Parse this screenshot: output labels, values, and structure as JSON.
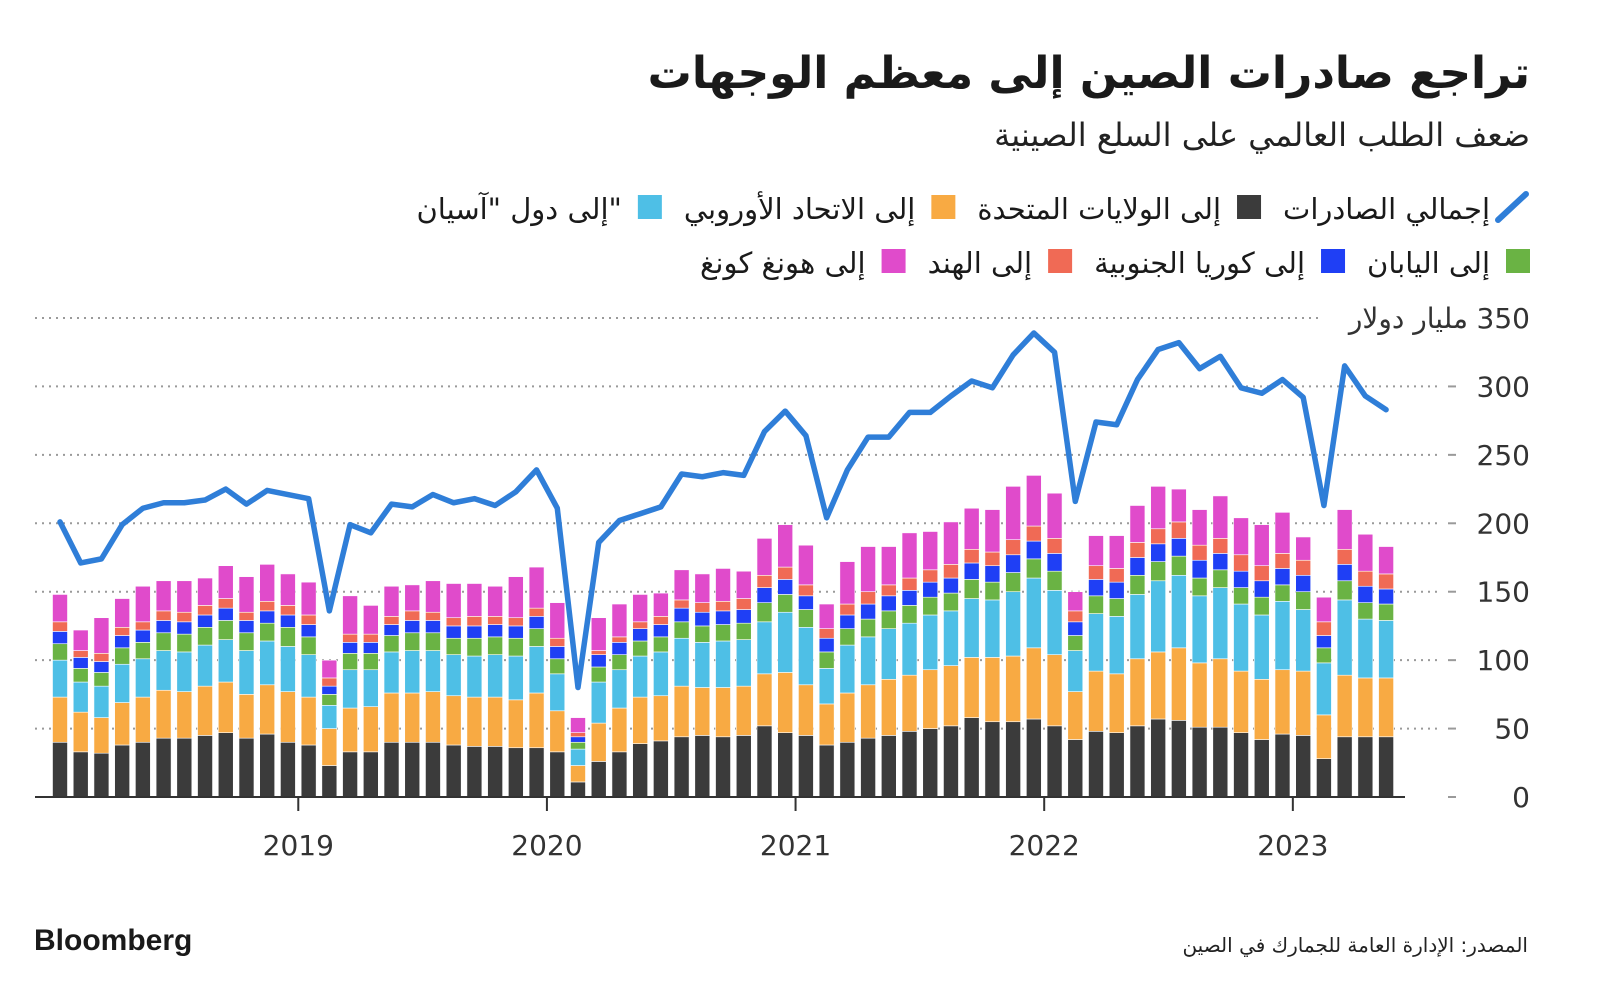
{
  "chart_data": {
    "type": "bar",
    "stacked": true,
    "title": "تراجع صادرات الصين إلى معظم الوجهات",
    "subtitle": "ضعف الطلب العالمي على السلع الصينية",
    "ylabel": "مليار دولار",
    "source": "المصدر: الإدارة العامة للجمارك في الصين",
    "brand": "Bloomberg",
    "categories": [
      null,
      null,
      null,
      null,
      null,
      null,
      null,
      null,
      null,
      null,
      null,
      "2019",
      null,
      null,
      null,
      null,
      null,
      null,
      null,
      null,
      null,
      null,
      null,
      "2020",
      null,
      null,
      null,
      null,
      null,
      null,
      null,
      null,
      null,
      null,
      null,
      "2021",
      null,
      null,
      null,
      null,
      null,
      null,
      null,
      null,
      null,
      null,
      null,
      "2022",
      null,
      null,
      null,
      null,
      null,
      null,
      null,
      null,
      null,
      null,
      null,
      "2023",
      null,
      null,
      null,
      null,
      null
    ],
    "ylim": [
      0,
      350
    ],
    "yticks": [
      0,
      50,
      100,
      150,
      200,
      250,
      300,
      350
    ],
    "grid": true,
    "series": [
      {
        "name": "إجمالي الصادرات",
        "type": "line",
        "color": "#2f7ed8",
        "values": [
          201,
          171,
          174,
          199,
          211,
          215,
          215,
          217,
          225,
          214,
          224,
          221,
          218,
          136,
          199,
          193,
          214,
          212,
          221,
          215,
          218,
          213,
          223,
          239,
          211,
          80,
          186,
          202,
          207,
          212,
          236,
          234,
          237,
          235,
          267,
          282,
          264,
          204,
          239,
          263,
          263,
          281,
          281,
          293,
          304,
          299,
          323,
          339,
          325,
          216,
          274,
          272,
          305,
          327,
          332,
          313,
          322,
          299,
          295,
          305,
          292,
          213,
          315,
          293,
          283
        ]
      },
      {
        "name": "إلى الولايات المتحدة",
        "color": "#3b3b3b",
        "values": [
          40,
          33,
          32,
          38,
          40,
          43,
          43,
          45,
          47,
          43,
          46,
          40,
          38,
          23,
          33,
          33,
          40,
          40,
          40,
          38,
          37,
          37,
          36,
          36,
          33,
          11,
          26,
          33,
          39,
          41,
          44,
          45,
          44,
          45,
          52,
          47,
          45,
          38,
          40,
          43,
          45,
          48,
          50,
          52,
          58,
          55,
          55,
          57,
          52,
          42,
          48,
          47,
          52,
          57,
          56,
          51,
          51,
          47,
          42,
          46,
          45,
          28,
          44,
          44,
          44
        ]
      },
      {
        "name": "إلى الاتحاد الأوروبي",
        "color": "#f8aa43",
        "values": [
          33,
          29,
          26,
          31,
          33,
          35,
          34,
          36,
          37,
          32,
          36,
          37,
          35,
          27,
          32,
          33,
          36,
          36,
          37,
          36,
          36,
          36,
          35,
          40,
          30,
          12,
          28,
          32,
          34,
          33,
          37,
          35,
          36,
          36,
          38,
          44,
          37,
          30,
          36,
          39,
          41,
          41,
          43,
          44,
          44,
          47,
          48,
          52,
          52,
          35,
          44,
          43,
          49,
          49,
          53,
          47,
          50,
          45,
          44,
          47,
          47,
          32,
          45,
          43,
          43
        ]
      },
      {
        "name": "إلى دول \"آسيان\"",
        "color": "#4ebfe6",
        "values": [
          27,
          22,
          23,
          28,
          28,
          29,
          29,
          30,
          31,
          32,
          32,
          33,
          31,
          17,
          28,
          27,
          30,
          31,
          30,
          30,
          30,
          31,
          32,
          34,
          27,
          12,
          30,
          28,
          30,
          32,
          35,
          33,
          34,
          34,
          38,
          44,
          42,
          26,
          35,
          35,
          37,
          38,
          40,
          40,
          43,
          42,
          47,
          51,
          47,
          30,
          42,
          42,
          47,
          52,
          53,
          49,
          52,
          49,
          47,
          50,
          45,
          38,
          55,
          43,
          42
        ]
      },
      {
        "name": "إلى اليابان",
        "color": "#6ab344",
        "values": [
          12,
          10,
          10,
          12,
          12,
          13,
          13,
          13,
          14,
          13,
          13,
          14,
          13,
          8,
          12,
          12,
          12,
          13,
          13,
          12,
          13,
          13,
          13,
          13,
          11,
          5,
          11,
          11,
          11,
          11,
          12,
          12,
          12,
          12,
          14,
          13,
          13,
          12,
          12,
          13,
          13,
          13,
          13,
          13,
          14,
          13,
          14,
          14,
          14,
          11,
          13,
          13,
          14,
          14,
          14,
          13,
          13,
          12,
          13,
          12,
          13,
          11,
          14,
          12,
          12
        ]
      },
      {
        "name": "إلى كوريا الجنوبية",
        "color": "#1f3ff5",
        "values": [
          9,
          8,
          8,
          9,
          9,
          9,
          9,
          9,
          9,
          9,
          9,
          9,
          9,
          6,
          8,
          8,
          8,
          9,
          9,
          9,
          9,
          9,
          9,
          9,
          9,
          4,
          9,
          9,
          9,
          9,
          10,
          10,
          10,
          10,
          11,
          11,
          10,
          10,
          10,
          11,
          11,
          11,
          11,
          11,
          12,
          12,
          13,
          13,
          13,
          10,
          12,
          12,
          13,
          13,
          13,
          13,
          12,
          12,
          12,
          12,
          12,
          9,
          12,
          12,
          11
        ]
      },
      {
        "name": "إلى الهند",
        "color": "#f06a55",
        "values": [
          7,
          5,
          6,
          6,
          6,
          7,
          7,
          7,
          7,
          6,
          7,
          7,
          7,
          6,
          6,
          6,
          6,
          7,
          6,
          6,
          7,
          6,
          6,
          6,
          6,
          3,
          3,
          4,
          5,
          6,
          6,
          7,
          7,
          8,
          9,
          9,
          8,
          7,
          8,
          9,
          8,
          9,
          9,
          10,
          10,
          10,
          11,
          11,
          11,
          8,
          10,
          10,
          11,
          11,
          12,
          11,
          11,
          12,
          11,
          11,
          11,
          10,
          11,
          11,
          11
        ]
      },
      {
        "name": "إلى هونغ كونغ",
        "color": "#e04bcb",
        "values": [
          20,
          15,
          26,
          21,
          26,
          22,
          23,
          20,
          24,
          26,
          27,
          23,
          24,
          13,
          28,
          21,
          22,
          19,
          23,
          25,
          24,
          22,
          30,
          30,
          26,
          11,
          24,
          24,
          20,
          17,
          22,
          21,
          24,
          20,
          27,
          31,
          29,
          18,
          31,
          33,
          28,
          33,
          28,
          31,
          30,
          31,
          39,
          37,
          33,
          14,
          22,
          24,
          27,
          31,
          24,
          26,
          31,
          27,
          30,
          30,
          17,
          18,
          29,
          27,
          20
        ]
      }
    ]
  }
}
